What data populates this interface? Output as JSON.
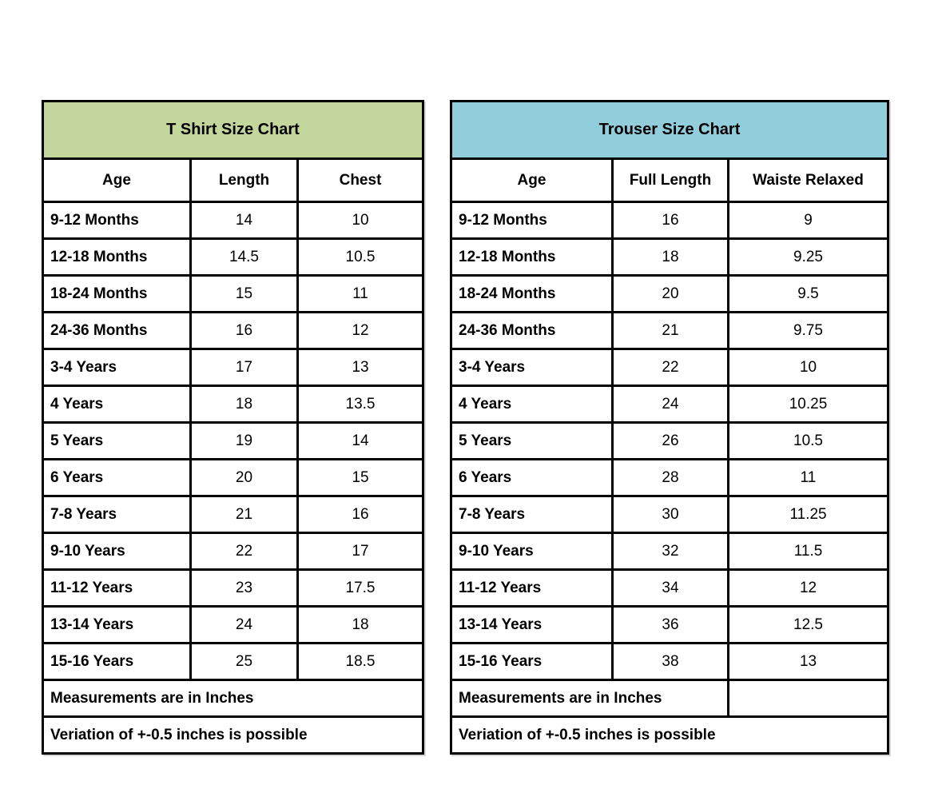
{
  "colors": {
    "page_bg": "#ffffff",
    "border": "#000000",
    "tshirt_title_bg": "#c3d69b",
    "trouser_title_bg": "#92cddc"
  },
  "chart_data": [
    {
      "type": "table",
      "title": "T Shirt Size Chart",
      "title_bg": "#c3d69b",
      "columns": [
        "Age",
        "Length",
        "Chest"
      ],
      "rows": [
        [
          "9-12 Months",
          "14",
          "10"
        ],
        [
          "12-18 Months",
          "14.5",
          "10.5"
        ],
        [
          "18-24 Months",
          "15",
          "11"
        ],
        [
          "24-36 Months",
          "16",
          "12"
        ],
        [
          "3-4 Years",
          "17",
          "13"
        ],
        [
          "4 Years",
          "18",
          "13.5"
        ],
        [
          "5 Years",
          "19",
          "14"
        ],
        [
          "6 Years",
          "20",
          "15"
        ],
        [
          "7-8 Years",
          "21",
          "16"
        ],
        [
          "9-10 Years",
          "22",
          "17"
        ],
        [
          "11-12 Years",
          "23",
          "17.5"
        ],
        [
          "13-14 Years",
          "24",
          "18"
        ],
        [
          "15-16 Years",
          "25",
          "18.5"
        ]
      ],
      "notes": [
        "Measurements are in Inches",
        "Veriation of +-0.5 inches is possible"
      ],
      "note1_spans_all": true,
      "units": "inches"
    },
    {
      "type": "table",
      "title": "Trouser Size Chart",
      "title_bg": "#92cddc",
      "columns": [
        "Age",
        "Full Length",
        "Waiste Relaxed"
      ],
      "rows": [
        [
          "9-12 Months",
          "16",
          "9"
        ],
        [
          "12-18 Months",
          "18",
          "9.25"
        ],
        [
          "18-24 Months",
          "20",
          "9.5"
        ],
        [
          "24-36 Months",
          "21",
          "9.75"
        ],
        [
          "3-4 Years",
          "22",
          "10"
        ],
        [
          "4 Years",
          "24",
          "10.25"
        ],
        [
          "5 Years",
          "26",
          "10.5"
        ],
        [
          "6 Years",
          "28",
          "11"
        ],
        [
          "7-8 Years",
          "30",
          "11.25"
        ],
        [
          "9-10 Years",
          "32",
          "11.5"
        ],
        [
          "11-12 Years",
          "34",
          "12"
        ],
        [
          "13-14 Years",
          "36",
          "12.5"
        ],
        [
          "15-16 Years",
          "38",
          "13"
        ]
      ],
      "notes": [
        "Measurements are in Inches",
        "Veriation of +-0.5 inches is possible"
      ],
      "note1_spans_all": false,
      "units": "inches"
    }
  ]
}
